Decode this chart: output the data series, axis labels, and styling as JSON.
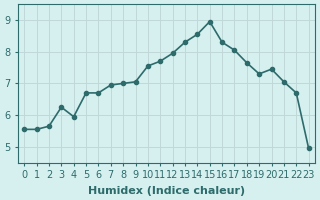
{
  "x": [
    0,
    1,
    2,
    3,
    4,
    5,
    6,
    7,
    8,
    9,
    10,
    11,
    12,
    13,
    14,
    15,
    16,
    17,
    18,
    19,
    20,
    21,
    22,
    23
  ],
  "y": [
    5.55,
    5.55,
    5.65,
    6.25,
    5.95,
    6.7,
    6.7,
    6.95,
    7.0,
    7.05,
    7.55,
    7.7,
    7.95,
    8.3,
    8.55,
    8.95,
    8.3,
    8.05,
    7.65,
    7.3,
    7.45,
    7.05,
    6.7,
    4.95
  ],
  "line_color": "#2e6b6b",
  "marker": "o",
  "markersize": 3,
  "linewidth": 1.2,
  "xlabel": "Humidex (Indice chaleur)",
  "xlim": [
    -0.5,
    23.5
  ],
  "ylim": [
    4.5,
    9.5
  ],
  "yticks": [
    5,
    6,
    7,
    8,
    9
  ],
  "xticks": [
    0,
    1,
    2,
    3,
    4,
    5,
    6,
    7,
    8,
    9,
    10,
    11,
    12,
    13,
    14,
    15,
    16,
    17,
    18,
    19,
    20,
    21,
    22,
    23
  ],
  "bg_color": "#d6f0f0",
  "grid_color": "#c0d8d8",
  "tick_color": "#2e6b6b",
  "label_color": "#2e6b6b",
  "xlabel_fontsize": 8,
  "tick_fontsize": 7
}
